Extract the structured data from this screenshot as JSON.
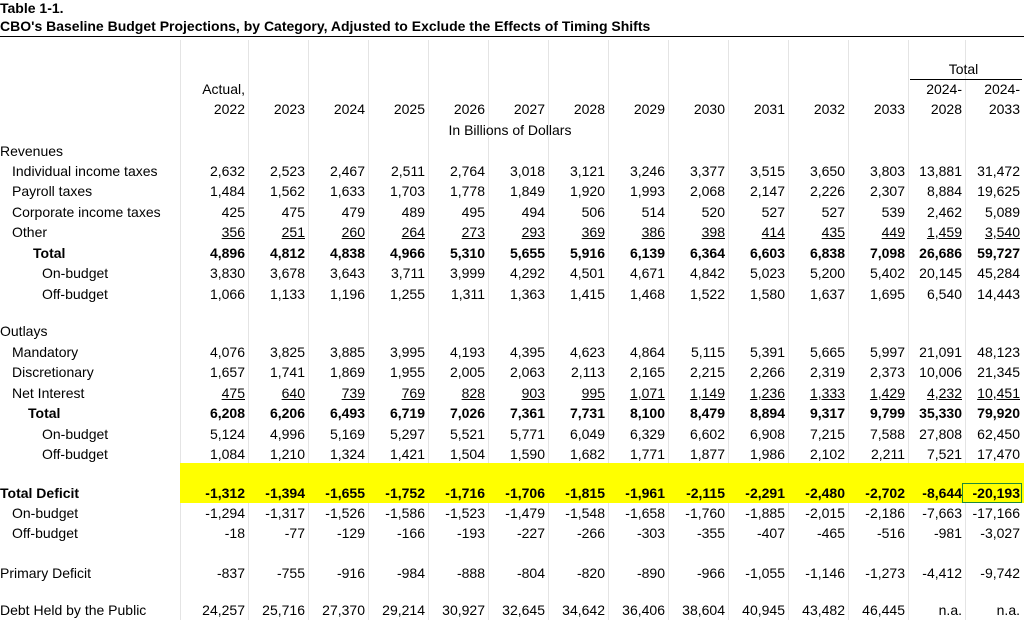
{
  "header": {
    "table_number": "Table 1-1.",
    "title": "CBO's Baseline Budget Projections, by Category, Adjusted to Exclude the Effects of Timing Shifts"
  },
  "total_group": "Total",
  "columns": [
    [
      "Actual,",
      "2022"
    ],
    [
      "2023"
    ],
    [
      "2024"
    ],
    [
      "2025"
    ],
    [
      "2026"
    ],
    [
      "2027"
    ],
    [
      "2028"
    ],
    [
      "2029"
    ],
    [
      "2030"
    ],
    [
      "2031"
    ],
    [
      "2032"
    ],
    [
      "2033"
    ],
    [
      "2024-",
      "2028"
    ],
    [
      "2024-",
      "2033"
    ]
  ],
  "units": "In Billions of Dollars",
  "rows": [
    {
      "label": "Revenues"
    },
    {
      "label": "Individual income taxes",
      "values": [
        "2,632",
        "2,523",
        "2,467",
        "2,511",
        "2,764",
        "3,018",
        "3,121",
        "3,246",
        "3,377",
        "3,515",
        "3,650",
        "3,803",
        "13,881",
        "31,472"
      ]
    },
    {
      "label": "Payroll taxes",
      "values": [
        "1,484",
        "1,562",
        "1,633",
        "1,703",
        "1,778",
        "1,849",
        "1,920",
        "1,993",
        "2,068",
        "2,147",
        "2,226",
        "2,307",
        "8,884",
        "19,625"
      ]
    },
    {
      "label": "Corporate income taxes",
      "values": [
        "425",
        "475",
        "479",
        "489",
        "495",
        "494",
        "506",
        "514",
        "520",
        "527",
        "527",
        "539",
        "2,462",
        "5,089"
      ]
    },
    {
      "label": "Other",
      "values": [
        "356",
        "251",
        "260",
        "264",
        "273",
        "293",
        "369",
        "386",
        "398",
        "414",
        "435",
        "449",
        "1,459",
        "3,540"
      ]
    },
    {
      "label": "Total",
      "values": [
        "4,896",
        "4,812",
        "4,838",
        "4,966",
        "5,310",
        "5,655",
        "5,916",
        "6,139",
        "6,364",
        "6,603",
        "6,838",
        "7,098",
        "26,686",
        "59,727"
      ]
    },
    {
      "label": "On-budget",
      "values": [
        "3,830",
        "3,678",
        "3,643",
        "3,711",
        "3,999",
        "4,292",
        "4,501",
        "4,671",
        "4,842",
        "5,023",
        "5,200",
        "5,402",
        "20,145",
        "45,284"
      ]
    },
    {
      "label": "Off-budget",
      "values": [
        "1,066",
        "1,133",
        "1,196",
        "1,255",
        "1,311",
        "1,363",
        "1,415",
        "1,468",
        "1,522",
        "1,580",
        "1,637",
        "1,695",
        "6,540",
        "14,443"
      ]
    },
    {
      "label": "Outlays"
    },
    {
      "label": "Mandatory",
      "values": [
        "4,076",
        "3,825",
        "3,885",
        "3,995",
        "4,193",
        "4,395",
        "4,623",
        "4,864",
        "5,115",
        "5,391",
        "5,665",
        "5,997",
        "21,091",
        "48,123"
      ]
    },
    {
      "label": "Discretionary",
      "values": [
        "1,657",
        "1,741",
        "1,869",
        "1,955",
        "2,005",
        "2,063",
        "2,113",
        "2,165",
        "2,215",
        "2,266",
        "2,319",
        "2,373",
        "10,006",
        "21,345"
      ]
    },
    {
      "label": "Net Interest",
      "values": [
        "475",
        "640",
        "739",
        "769",
        "828",
        "903",
        "995",
        "1,071",
        "1,149",
        "1,236",
        "1,333",
        "1,429",
        "4,232",
        "10,451"
      ]
    },
    {
      "label": "Total",
      "values": [
        "6,208",
        "6,206",
        "6,493",
        "6,719",
        "7,026",
        "7,361",
        "7,731",
        "8,100",
        "8,479",
        "8,894",
        "9,317",
        "9,799",
        "35,330",
        "79,920"
      ]
    },
    {
      "label": "On-budget",
      "values": [
        "5,124",
        "4,996",
        "5,169",
        "5,297",
        "5,521",
        "5,771",
        "6,049",
        "6,329",
        "6,602",
        "6,908",
        "7,215",
        "7,588",
        "27,808",
        "62,450"
      ]
    },
    {
      "label": "Off-budget",
      "values": [
        "1,084",
        "1,210",
        "1,324",
        "1,421",
        "1,504",
        "1,590",
        "1,682",
        "1,771",
        "1,877",
        "1,986",
        "2,102",
        "2,211",
        "7,521",
        "17,470"
      ]
    },
    {
      "label": "Total Deficit",
      "values": [
        "-1,312",
        "-1,394",
        "-1,655",
        "-1,752",
        "-1,716",
        "-1,706",
        "-1,815",
        "-1,961",
        "-2,115",
        "-2,291",
        "-2,480",
        "-2,702",
        "-8,644",
        "-20,193"
      ]
    },
    {
      "label": "On-budget",
      "values": [
        "-1,294",
        "-1,317",
        "-1,526",
        "-1,586",
        "-1,523",
        "-1,479",
        "-1,548",
        "-1,658",
        "-1,760",
        "-1,885",
        "-2,015",
        "-2,186",
        "-7,663",
        "-17,166"
      ]
    },
    {
      "label": "Off-budget",
      "values": [
        "-18",
        "-77",
        "-129",
        "-166",
        "-193",
        "-227",
        "-266",
        "-303",
        "-355",
        "-407",
        "-465",
        "-516",
        "-981",
        "-3,027"
      ]
    },
    {
      "label": "Primary Deficit",
      "values": [
        "-837",
        "-755",
        "-916",
        "-984",
        "-888",
        "-804",
        "-820",
        "-890",
        "-966",
        "-1,055",
        "-1,146",
        "-1,273",
        "-4,412",
        "-9,742"
      ]
    },
    {
      "label": "Debt Held by the Public",
      "values": [
        "24,257",
        "25,716",
        "27,370",
        "29,214",
        "30,927",
        "32,645",
        "34,642",
        "36,406",
        "38,604",
        "40,945",
        "43,482",
        "46,445",
        "n.a.",
        "n.a."
      ]
    }
  ]
}
